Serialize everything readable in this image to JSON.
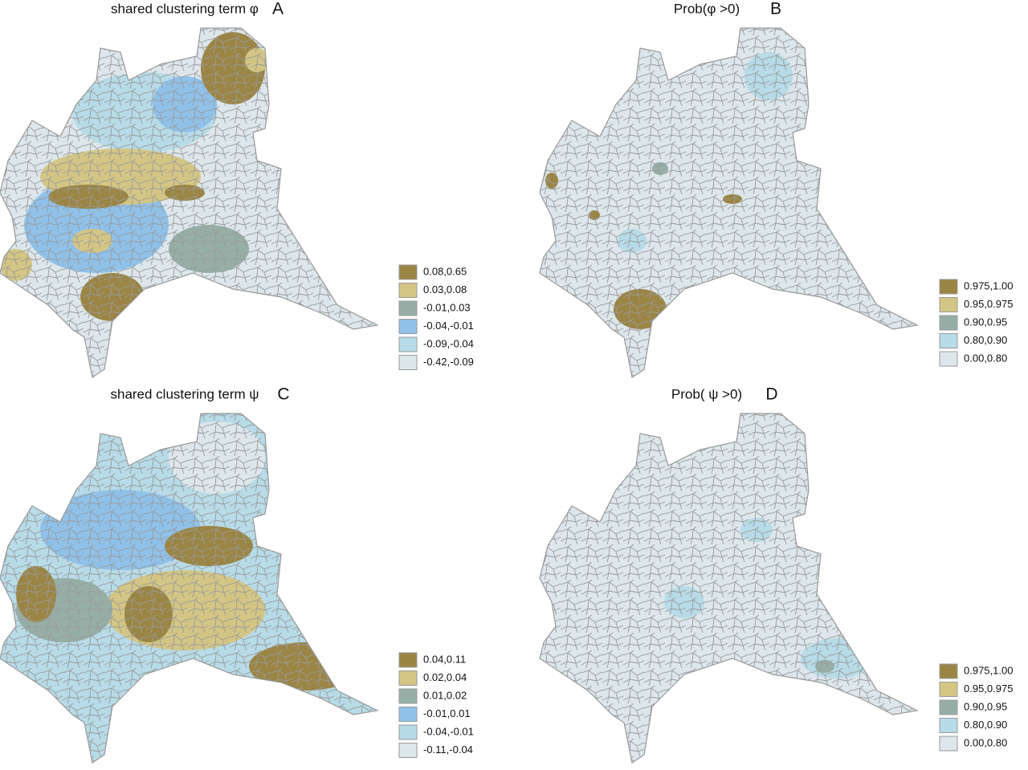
{
  "panels": [
    {
      "title": "shared clustering term φ",
      "letter": "A",
      "legend": [
        {
          "label": "0.08,0.65",
          "color": "#9b8545"
        },
        {
          "label": "0.03,0.08",
          "color": "#d3c685"
        },
        {
          "label": "-0.01,0.03",
          "color": "#96aea6"
        },
        {
          "label": "-0.04,-0.01",
          "color": "#8fc1e9"
        },
        {
          "label": "-0.09,-0.04",
          "color": "#b7dbe7"
        },
        {
          "label": "-0.42,-0.09",
          "color": "#dce6eb"
        }
      ]
    },
    {
      "title": "Prob(φ >0)",
      "letter": "B",
      "legend": [
        {
          "label": "0.975,1.00",
          "color": "#9b8545"
        },
        {
          "label": "0.95,0.975",
          "color": "#d3c685"
        },
        {
          "label": "0.90,0.95",
          "color": "#96aea6"
        },
        {
          "label": "0.80,0.90",
          "color": "#b7dbe7"
        },
        {
          "label": "0.00,0.80",
          "color": "#dce6eb"
        }
      ]
    },
    {
      "title": "shared clustering term ψ",
      "letter": "C",
      "legend": [
        {
          "label": "0.04,0.11",
          "color": "#9b8545"
        },
        {
          "label": "0.02,0.04",
          "color": "#d3c685"
        },
        {
          "label": "0.01,0.02",
          "color": "#96aea6"
        },
        {
          "label": "-0.01,0.01",
          "color": "#8fc1e9"
        },
        {
          "label": "-0.04,-0.01",
          "color": "#b7dbe7"
        },
        {
          "label": "-0.11,-0.04",
          "color": "#dce6eb"
        }
      ]
    },
    {
      "title": "Prob( ψ >0)",
      "letter": "D",
      "legend": [
        {
          "label": "0.975,1.00",
          "color": "#9b8545"
        },
        {
          "label": "0.95,0.975",
          "color": "#d3c685"
        },
        {
          "label": "0.90,0.95",
          "color": "#96aea6"
        },
        {
          "label": "0.80,0.90",
          "color": "#b7dbe7"
        },
        {
          "label": "0.00,0.80",
          "color": "#dce6eb"
        }
      ]
    }
  ]
}
